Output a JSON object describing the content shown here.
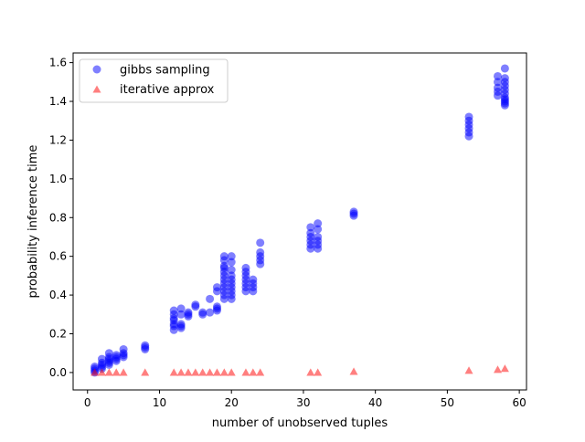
{
  "chart_data": {
    "type": "scatter",
    "title": "",
    "xlabel": "number of unobserved tuples",
    "ylabel": "probability inference time",
    "xlim": [
      -2,
      61
    ],
    "ylim": [
      -0.09,
      1.65
    ],
    "xticks": [
      0,
      10,
      20,
      30,
      40,
      50,
      60
    ],
    "xtick_labels": [
      "0",
      "10",
      "20",
      "30",
      "40",
      "50",
      "60"
    ],
    "yticks": [
      0.0,
      0.2,
      0.4,
      0.6,
      0.8,
      1.0,
      1.2,
      1.4,
      1.6
    ],
    "ytick_labels": [
      "0.0",
      "0.2",
      "0.4",
      "0.6",
      "0.8",
      "1.0",
      "1.2",
      "1.4",
      "1.6"
    ],
    "grid": false,
    "legend_position": "top-left",
    "series": [
      {
        "name": "gibbs sampling",
        "marker": "circle",
        "color": "#0000ff",
        "points": [
          [
            1,
            0.01
          ],
          [
            1,
            0.02
          ],
          [
            1,
            0.03
          ],
          [
            1,
            0.0
          ],
          [
            2,
            0.02
          ],
          [
            2,
            0.03
          ],
          [
            2,
            0.05
          ],
          [
            2,
            0.07
          ],
          [
            2,
            0.04
          ],
          [
            3,
            0.04
          ],
          [
            3,
            0.05
          ],
          [
            3,
            0.06
          ],
          [
            3,
            0.07
          ],
          [
            3,
            0.08
          ],
          [
            3,
            0.1
          ],
          [
            4,
            0.06
          ],
          [
            4,
            0.07
          ],
          [
            4,
            0.08
          ],
          [
            4,
            0.09
          ],
          [
            5,
            0.08
          ],
          [
            5,
            0.09
          ],
          [
            5,
            0.1
          ],
          [
            5,
            0.12
          ],
          [
            8,
            0.12
          ],
          [
            8,
            0.13
          ],
          [
            8,
            0.14
          ],
          [
            12,
            0.22
          ],
          [
            12,
            0.24
          ],
          [
            12,
            0.25
          ],
          [
            12,
            0.27
          ],
          [
            12,
            0.28
          ],
          [
            12,
            0.3
          ],
          [
            12,
            0.32
          ],
          [
            13,
            0.23
          ],
          [
            13,
            0.24
          ],
          [
            13,
            0.25
          ],
          [
            13,
            0.3
          ],
          [
            13,
            0.33
          ],
          [
            14,
            0.29
          ],
          [
            14,
            0.3
          ],
          [
            14,
            0.31
          ],
          [
            15,
            0.34
          ],
          [
            15,
            0.35
          ],
          [
            16,
            0.3
          ],
          [
            16,
            0.31
          ],
          [
            17,
            0.31
          ],
          [
            17,
            0.38
          ],
          [
            18,
            0.32
          ],
          [
            18,
            0.33
          ],
          [
            18,
            0.34
          ],
          [
            18,
            0.42
          ],
          [
            18,
            0.44
          ],
          [
            19,
            0.38
          ],
          [
            19,
            0.4
          ],
          [
            19,
            0.42
          ],
          [
            19,
            0.44
          ],
          [
            19,
            0.46
          ],
          [
            19,
            0.48
          ],
          [
            19,
            0.5
          ],
          [
            19,
            0.52
          ],
          [
            19,
            0.54
          ],
          [
            19,
            0.55
          ],
          [
            19,
            0.58
          ],
          [
            19,
            0.6
          ],
          [
            20,
            0.38
          ],
          [
            20,
            0.4
          ],
          [
            20,
            0.42
          ],
          [
            20,
            0.44
          ],
          [
            20,
            0.46
          ],
          [
            20,
            0.48
          ],
          [
            20,
            0.5
          ],
          [
            20,
            0.53
          ],
          [
            20,
            0.57
          ],
          [
            20,
            0.6
          ],
          [
            22,
            0.42
          ],
          [
            22,
            0.44
          ],
          [
            22,
            0.46
          ],
          [
            22,
            0.48
          ],
          [
            22,
            0.5
          ],
          [
            22,
            0.52
          ],
          [
            22,
            0.54
          ],
          [
            23,
            0.42
          ],
          [
            23,
            0.44
          ],
          [
            23,
            0.46
          ],
          [
            23,
            0.48
          ],
          [
            24,
            0.56
          ],
          [
            24,
            0.58
          ],
          [
            24,
            0.6
          ],
          [
            24,
            0.62
          ],
          [
            24,
            0.67
          ],
          [
            31,
            0.64
          ],
          [
            31,
            0.66
          ],
          [
            31,
            0.68
          ],
          [
            31,
            0.7
          ],
          [
            31,
            0.72
          ],
          [
            31,
            0.75
          ],
          [
            32,
            0.64
          ],
          [
            32,
            0.66
          ],
          [
            32,
            0.68
          ],
          [
            32,
            0.7
          ],
          [
            32,
            0.74
          ],
          [
            32,
            0.77
          ],
          [
            37,
            0.81
          ],
          [
            37,
            0.82
          ],
          [
            37,
            0.83
          ],
          [
            53,
            1.22
          ],
          [
            53,
            1.24
          ],
          [
            53,
            1.26
          ],
          [
            53,
            1.28
          ],
          [
            53,
            1.3
          ],
          [
            53,
            1.32
          ],
          [
            57,
            1.43
          ],
          [
            57,
            1.45
          ],
          [
            57,
            1.47
          ],
          [
            57,
            1.5
          ],
          [
            57,
            1.53
          ],
          [
            58,
            1.38
          ],
          [
            58,
            1.39
          ],
          [
            58,
            1.4
          ],
          [
            58,
            1.41
          ],
          [
            58,
            1.42
          ],
          [
            58,
            1.44
          ],
          [
            58,
            1.46
          ],
          [
            58,
            1.48
          ],
          [
            58,
            1.5
          ],
          [
            58,
            1.52
          ],
          [
            58,
            1.57
          ]
        ]
      },
      {
        "name": "iterative approx",
        "marker": "triangle",
        "color": "#ff0000",
        "points": [
          [
            1,
            0.0
          ],
          [
            2,
            0.0
          ],
          [
            3,
            0.0
          ],
          [
            4,
            0.0
          ],
          [
            5,
            0.0
          ],
          [
            8,
            0.0
          ],
          [
            12,
            0.0
          ],
          [
            13,
            0.0
          ],
          [
            14,
            0.0
          ],
          [
            15,
            0.0
          ],
          [
            16,
            0.0
          ],
          [
            17,
            0.0
          ],
          [
            18,
            0.0
          ],
          [
            19,
            0.0
          ],
          [
            20,
            0.0
          ],
          [
            22,
            0.0
          ],
          [
            23,
            0.0
          ],
          [
            24,
            0.0
          ],
          [
            31,
            0.0
          ],
          [
            32,
            0.0
          ],
          [
            37,
            0.005
          ],
          [
            53,
            0.01
          ],
          [
            57,
            0.015
          ],
          [
            58,
            0.02
          ]
        ]
      }
    ]
  }
}
